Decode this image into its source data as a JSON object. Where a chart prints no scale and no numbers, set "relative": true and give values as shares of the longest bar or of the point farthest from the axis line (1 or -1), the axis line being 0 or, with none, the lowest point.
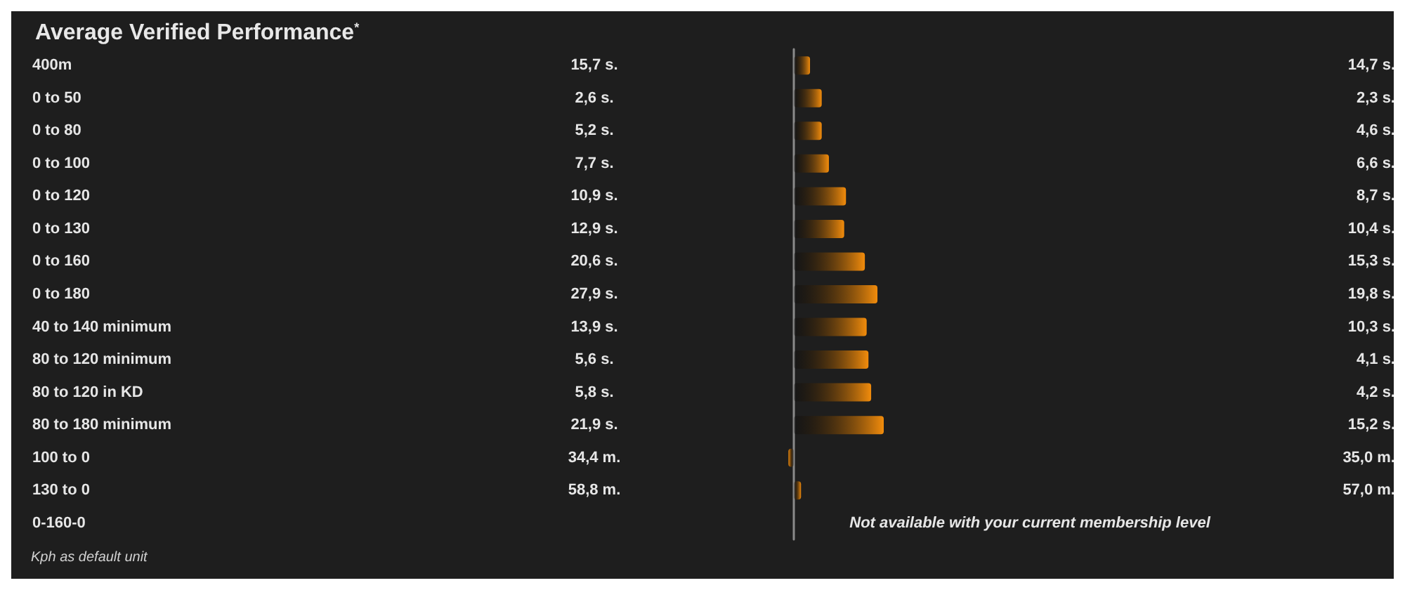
{
  "chart_data": {
    "type": "bar",
    "orientation": "horizontal",
    "relative": true,
    "title": "Average Verified Performance$^{*}$",
    "categories": [
      "400m",
      "0 to 50",
      "0 to 80",
      "0 to 100",
      "0 to 120",
      "0 to 130",
      "0 to 160",
      "0 to 180",
      "40 to 140 minimum",
      "80 to 120 minimum",
      "80 to 120 in KD",
      "80 to 180 minimum",
      "100 to 0",
      "130 to 0",
      "0-160-0"
    ],
    "values": [
      0.18,
      0.31,
      0.31,
      0.39,
      0.58,
      0.56,
      0.79,
      0.93,
      0.81,
      0.83,
      0.86,
      1,
      -0.06,
      0.08,
      null
    ],
    "color": "#f28c0c",
    "grid": false,
    "annotations": [
      "15,7 s.",
      "14,7 s.",
      "2,6 s.",
      "2,3 s.",
      "5,2 s.",
      "4,6 s.",
      "7,7 s.",
      "6,6 s.",
      "10,9 s.",
      "8,7 s.",
      "12,9 s.",
      "10,4 s.",
      "20,6 s.",
      "15,3 s.",
      "27,9 s.",
      "19,8 s.",
      "13,9 s.",
      "10,3 s.",
      "5,6 s.",
      "4,1 s.",
      "5,8 s.",
      "4,2 s.",
      "21,9 s.",
      "15,2 s.",
      "34,4 m.",
      "35,0 m.",
      "58,8 m.",
      "57,0 m.",
      "Not available with your current membership level",
      "Kph as default unit"
    ]
  }
}
